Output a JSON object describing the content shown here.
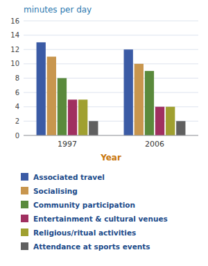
{
  "chart_data": {
    "type": "bar",
    "title": "minutes per day",
    "x_label": "Year",
    "categories": [
      "1997",
      "2006"
    ],
    "series": [
      {
        "name": "Associated travel",
        "color": "#3b5ba5",
        "values": [
          13,
          12
        ]
      },
      {
        "name": "Socialising",
        "color": "#c8964e",
        "values": [
          11,
          10
        ]
      },
      {
        "name": "Community participation",
        "color": "#5a8a3c",
        "values": [
          8,
          9
        ]
      },
      {
        "name": "Entertainment & cultural venues",
        "color": "#a03060",
        "values": [
          5,
          4
        ]
      },
      {
        "name": "Religious/ritual activities",
        "color": "#a0a030",
        "values": [
          5,
          4
        ]
      },
      {
        "name": "Attendance at sports events",
        "color": "#606060",
        "values": [
          2,
          2
        ]
      }
    ],
    "ylim": [
      0,
      16
    ],
    "yticks": [
      0,
      2,
      4,
      6,
      8,
      10,
      12,
      14,
      16
    ],
    "grid": true,
    "legend": "bottom"
  }
}
